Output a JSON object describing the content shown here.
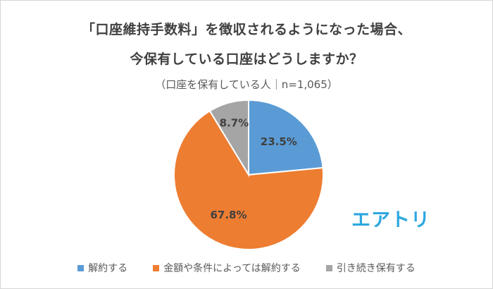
{
  "chart_data": {
    "type": "pie",
    "title": [
      "「口座維持手数料」を徴収されるようになった場合、",
      "今保有している口座はどうしますか？"
    ],
    "subtitle": "（口座を保有している人｜n=1,065）",
    "slices": [
      {
        "name": "解約する",
        "value": 23.5,
        "label": "23.5%",
        "color": "#5b9bd5"
      },
      {
        "name": "金額や条件によっては解約する",
        "value": 67.8,
        "label": "67.8%",
        "color": "#ed7d31"
      },
      {
        "name": "引き続き保有する",
        "value": 8.7,
        "label": "8.7%",
        "color": "#a5a5a5"
      }
    ],
    "legend_position": "bottom"
  },
  "logo": {
    "text": "エアトリ",
    "color": "#2ea7e0"
  }
}
